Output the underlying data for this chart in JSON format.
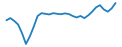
{
  "x": [
    0,
    1,
    2,
    3,
    4,
    5,
    6,
    7,
    8,
    9,
    10,
    11,
    12,
    13,
    14,
    15,
    16,
    17,
    18,
    19,
    20,
    21,
    22,
    23,
    24,
    25,
    26,
    27,
    28
  ],
  "y": [
    3.5,
    4.5,
    3.2,
    1.5,
    -2.5,
    -7.5,
    -4.0,
    0.5,
    5.5,
    6.8,
    6.5,
    6.2,
    6.8,
    6.5,
    6.3,
    6.7,
    6.4,
    5.5,
    4.8,
    5.5,
    4.5,
    5.8,
    7.5,
    9.5,
    10.5,
    8.5,
    7.5,
    9.0,
    11.5
  ],
  "line_color": "#2080c0",
  "linewidth": 1.3,
  "background_color": "#ffffff"
}
